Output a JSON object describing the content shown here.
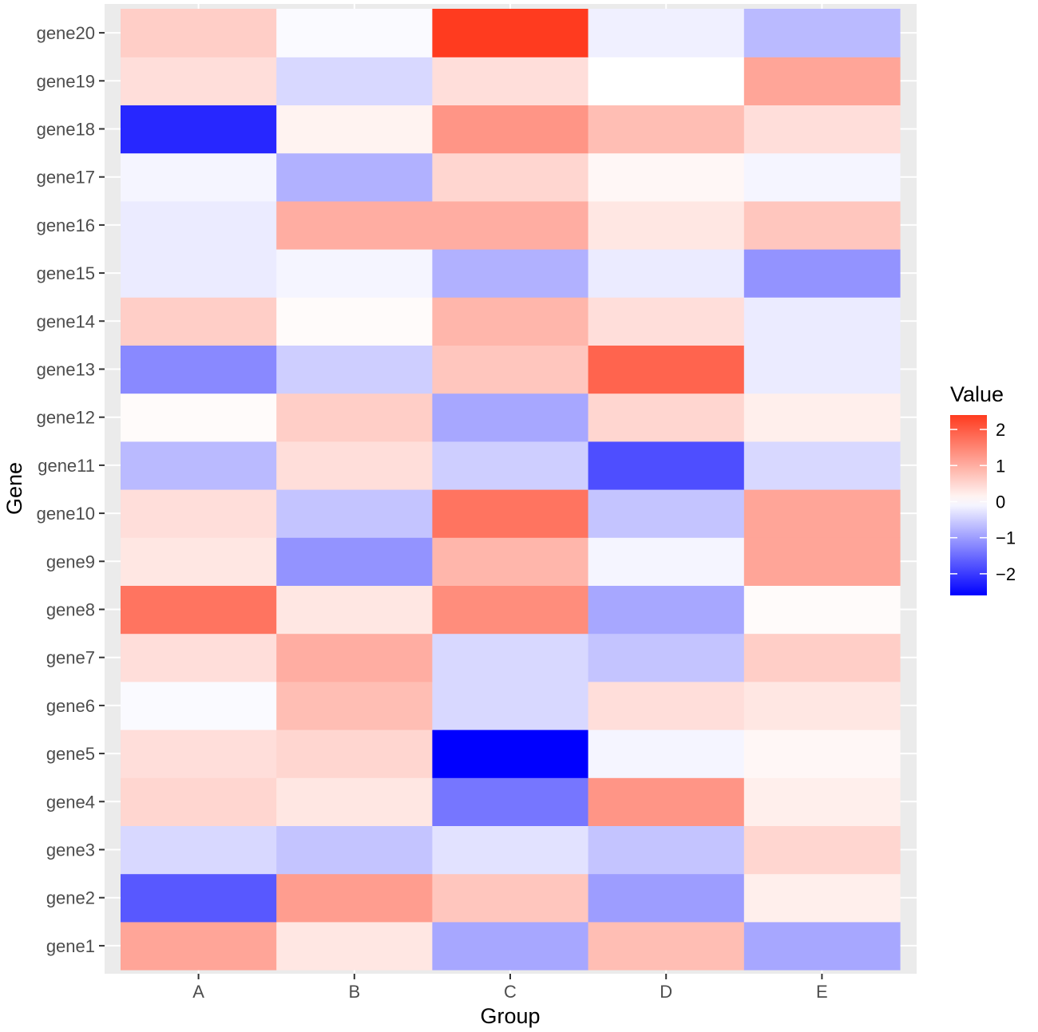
{
  "chart_data": {
    "type": "heatmap",
    "x": [
      "A",
      "B",
      "C",
      "D",
      "E"
    ],
    "y": [
      "gene1",
      "gene2",
      "gene3",
      "gene4",
      "gene5",
      "gene6",
      "gene7",
      "gene8",
      "gene9",
      "gene10",
      "gene11",
      "gene12",
      "gene13",
      "gene14",
      "gene15",
      "gene16",
      "gene17",
      "gene18",
      "gene19",
      "gene20"
    ],
    "values": [
      [
        1.1,
        0.3,
        -0.9,
        0.8,
        -0.9
      ],
      [
        -1.7,
        1.2,
        0.7,
        -1.0,
        0.2
      ],
      [
        -0.4,
        -0.6,
        -0.3,
        -0.6,
        0.5
      ],
      [
        0.5,
        0.3,
        -1.4,
        1.3,
        0.2
      ],
      [
        0.4,
        0.5,
        -2.6,
        -0.1,
        0.1
      ],
      [
        -0.05,
        0.8,
        -0.4,
        0.4,
        0.3
      ],
      [
        0.4,
        1.0,
        -0.4,
        -0.6,
        0.6
      ],
      [
        1.7,
        0.3,
        1.4,
        -0.9,
        0.05
      ],
      [
        0.3,
        -1.1,
        0.9,
        -0.1,
        1.1
      ],
      [
        0.4,
        -0.6,
        1.7,
        -0.6,
        1.1
      ],
      [
        -0.7,
        0.4,
        -0.5,
        -1.8,
        -0.4
      ],
      [
        0.05,
        0.6,
        -0.9,
        0.5,
        0.2
      ],
      [
        -1.2,
        -0.5,
        0.7,
        1.9,
        -0.2
      ],
      [
        0.6,
        0.05,
        0.9,
        0.4,
        -0.2
      ],
      [
        -0.2,
        -0.1,
        -0.8,
        -0.2,
        -1.1
      ],
      [
        -0.2,
        1.0,
        1.0,
        0.3,
        0.7
      ],
      [
        -0.1,
        -0.8,
        0.5,
        0.1,
        -0.1
      ],
      [
        -2.2,
        0.15,
        1.3,
        0.8,
        0.4
      ],
      [
        0.4,
        -0.4,
        0.4,
        0.0,
        1.1
      ],
      [
        0.6,
        -0.05,
        2.4,
        -0.15,
        -0.7
      ]
    ],
    "xlabel": "Group",
    "ylabel": "Gene",
    "legend": {
      "title": "Value",
      "ticks": [
        2,
        1,
        0,
        -1,
        -2
      ],
      "tick_labels": [
        "2",
        "1",
        "0",
        "−1",
        "−2"
      ],
      "limits": [
        -2.6,
        2.4
      ],
      "colors": {
        "low": "#0000ff",
        "mid": "#ffffff",
        "high": "#ff3b1f"
      }
    },
    "panel_background": "#ebebeb",
    "grid": true,
    "legend_position": "right"
  }
}
